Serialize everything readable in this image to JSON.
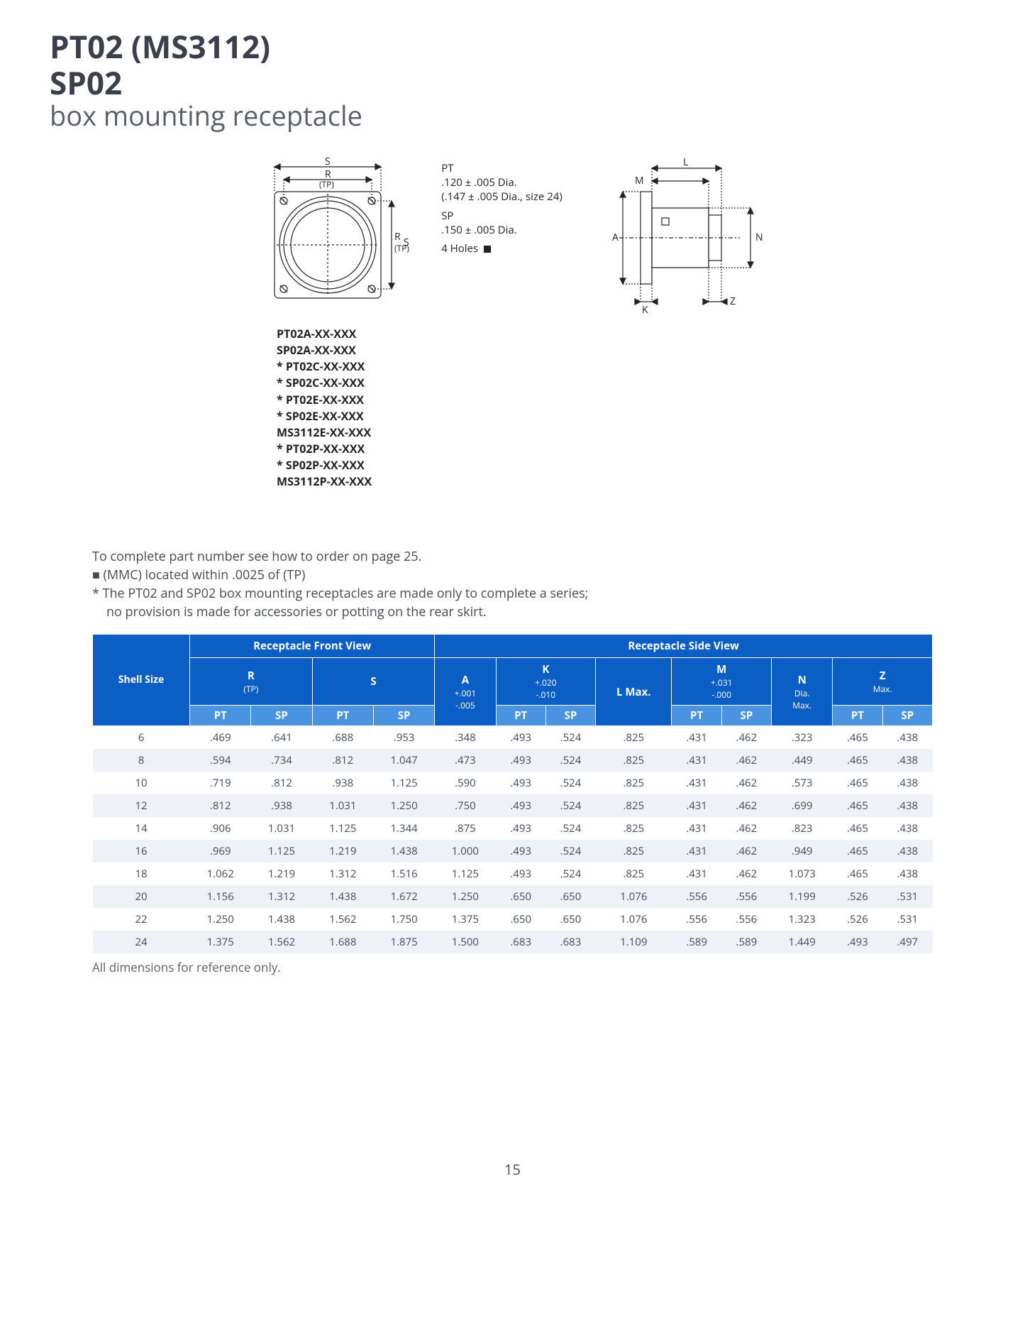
{
  "title": {
    "line1": "PT02 (MS3112)",
    "line2": "SP02",
    "subtitle": "box mounting receptacle"
  },
  "diagram": {
    "front": {
      "s_label": "S",
      "r_label": "R",
      "tp_label": "(TP)",
      "r2_label": "R",
      "tp2_label": "(TP)",
      "s2_label": "S"
    },
    "side": {
      "l_label": "L",
      "m_label": "M",
      "a_label": "A",
      "n_label": "N",
      "k_label": "K",
      "z_label": "Z"
    },
    "holes": {
      "pt_hdr": "PT",
      "pt_line1": ".120 ± .005 Dia.",
      "pt_line2": "(.147 ± .005 Dia., size 24)",
      "sp_hdr": "SP",
      "sp_line1": ".150 ± .005 Dia.",
      "holes_label": "4 Holes"
    }
  },
  "part_numbers": [
    "PT02A-XX-XXX",
    "SP02A-XX-XXX",
    "* PT02C-XX-XXX",
    "* SP02C-XX-XXX",
    "* PT02E-XX-XXX",
    "* SP02E-XX-XXX",
    "MS3112E-XX-XXX",
    "* PT02P-XX-XXX",
    "* SP02P-XX-XXX",
    "MS3112P-XX-XXX"
  ],
  "notes": {
    "n1": "To complete part number see how to order on page 25.",
    "n2": "■ (MMC) located within .0025 of (TP)",
    "n3a": "* The PT02 and SP02 box mounting receptacles are made only to complete a series;",
    "n3b": "no provision is made for accessories or potting on the rear skirt."
  },
  "table": {
    "group_headers": {
      "shell": "Shell Size",
      "front": "Receptacle Front View",
      "side": "Receptacle Side View"
    },
    "col_headers": {
      "r": "R",
      "r_sub": "(TP)",
      "s": "S",
      "a": "A",
      "a_sub1": "+.001",
      "a_sub2": "-.005",
      "k": "K",
      "k_sub1": "+.020",
      "k_sub2": "-.010",
      "l": "L Max.",
      "m": "M",
      "m_sub1": "+.031",
      "m_sub2": "-.000",
      "n": "N",
      "n_sub1": "Dia.",
      "n_sub2": "Max.",
      "z": "Z",
      "z_sub": "Max.",
      "pt": "PT",
      "sp": "SP"
    },
    "rows": [
      {
        "shell": "6",
        "r_pt": ".469",
        "r_sp": ".641",
        "s_pt": ".688",
        "s_sp": ".953",
        "a": ".348",
        "k_pt": ".493",
        "k_sp": ".524",
        "l": ".825",
        "m_pt": ".431",
        "m_sp": ".462",
        "n": ".323",
        "z_pt": ".465",
        "z_sp": ".438"
      },
      {
        "shell": "8",
        "r_pt": ".594",
        "r_sp": ".734",
        "s_pt": ".812",
        "s_sp": "1.047",
        "a": ".473",
        "k_pt": ".493",
        "k_sp": ".524",
        "l": ".825",
        "m_pt": ".431",
        "m_sp": ".462",
        "n": ".449",
        "z_pt": ".465",
        "z_sp": ".438"
      },
      {
        "shell": "10",
        "r_pt": ".719",
        "r_sp": ".812",
        "s_pt": ".938",
        "s_sp": "1.125",
        "a": ".590",
        "k_pt": ".493",
        "k_sp": ".524",
        "l": ".825",
        "m_pt": ".431",
        "m_sp": ".462",
        "n": ".573",
        "z_pt": ".465",
        "z_sp": ".438"
      },
      {
        "shell": "12",
        "r_pt": ".812",
        "r_sp": ".938",
        "s_pt": "1.031",
        "s_sp": "1.250",
        "a": ".750",
        "k_pt": ".493",
        "k_sp": ".524",
        "l": ".825",
        "m_pt": ".431",
        "m_sp": ".462",
        "n": ".699",
        "z_pt": ".465",
        "z_sp": ".438"
      },
      {
        "shell": "14",
        "r_pt": ".906",
        "r_sp": "1.031",
        "s_pt": "1.125",
        "s_sp": "1.344",
        "a": ".875",
        "k_pt": ".493",
        "k_sp": ".524",
        "l": ".825",
        "m_pt": ".431",
        "m_sp": ".462",
        "n": ".823",
        "z_pt": ".465",
        "z_sp": ".438"
      },
      {
        "shell": "16",
        "r_pt": ".969",
        "r_sp": "1.125",
        "s_pt": "1.219",
        "s_sp": "1.438",
        "a": "1.000",
        "k_pt": ".493",
        "k_sp": ".524",
        "l": ".825",
        "m_pt": ".431",
        "m_sp": ".462",
        "n": ".949",
        "z_pt": ".465",
        "z_sp": ".438"
      },
      {
        "shell": "18",
        "r_pt": "1.062",
        "r_sp": "1.219",
        "s_pt": "1.312",
        "s_sp": "1.516",
        "a": "1.125",
        "k_pt": ".493",
        "k_sp": ".524",
        "l": ".825",
        "m_pt": ".431",
        "m_sp": ".462",
        "n": "1.073",
        "z_pt": ".465",
        "z_sp": ".438"
      },
      {
        "shell": "20",
        "r_pt": "1.156",
        "r_sp": "1.312",
        "s_pt": "1.438",
        "s_sp": "1.672",
        "a": "1.250",
        "k_pt": ".650",
        "k_sp": ".650",
        "l": "1.076",
        "m_pt": ".556",
        "m_sp": ".556",
        "n": "1.199",
        "z_pt": ".526",
        "z_sp": ".531"
      },
      {
        "shell": "22",
        "r_pt": "1.250",
        "r_sp": "1.438",
        "s_pt": "1.562",
        "s_sp": "1.750",
        "a": "1.375",
        "k_pt": ".650",
        "k_sp": ".650",
        "l": "1.076",
        "m_pt": ".556",
        "m_sp": ".556",
        "n": "1.323",
        "z_pt": ".526",
        "z_sp": ".531"
      },
      {
        "shell": "24",
        "r_pt": "1.375",
        "r_sp": "1.562",
        "s_pt": "1.688",
        "s_sp": "1.875",
        "a": "1.500",
        "k_pt": ".683",
        "k_sp": ".683",
        "l": "1.109",
        "m_pt": ".589",
        "m_sp": ".589",
        "n": "1.449",
        "z_pt": ".493",
        "z_sp": ".497"
      }
    ],
    "footer": "All dimensions for reference only."
  },
  "page_number": "15"
}
